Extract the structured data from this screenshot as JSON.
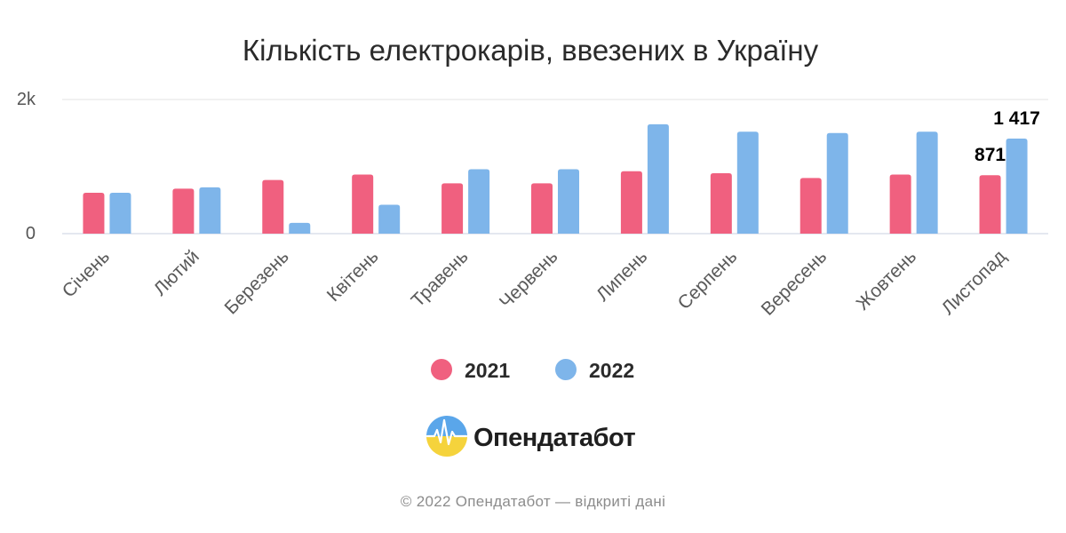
{
  "chart_data": {
    "type": "bar",
    "title": "Кількість електрокарів, ввезених в Україну",
    "categories": [
      "Січень",
      "Лютий",
      "Березень",
      "Квітень",
      "Травень",
      "Червень",
      "Липень",
      "Серпень",
      "Вересень",
      "Жовтень",
      "Листопад"
    ],
    "series": [
      {
        "name": "2021",
        "color": "#f0607f",
        "values": [
          610,
          670,
          800,
          880,
          750,
          750,
          930,
          900,
          830,
          880,
          871
        ]
      },
      {
        "name": "2022",
        "color": "#7eb5ea",
        "values": [
          610,
          690,
          160,
          430,
          960,
          960,
          1630,
          1520,
          1500,
          1520,
          1417
        ]
      }
    ],
    "data_labels": [
      {
        "series": "2021",
        "category": "Листопад",
        "text": "871"
      },
      {
        "series": "2022",
        "category": "Листопад",
        "text": "1 417"
      }
    ],
    "y_ticks": [
      {
        "value": 0,
        "label": "0"
      },
      {
        "value": 2000,
        "label": "2k"
      }
    ],
    "ylim": [
      0,
      2000
    ],
    "xlabel": "",
    "ylabel": "",
    "grid": true,
    "legend_position": "bottom-center"
  },
  "brand": {
    "name": "Опендатабот",
    "logo_icon": "opendatabot-logo-icon"
  },
  "footer": {
    "text": "© 2022 Опендатабот — відкриті дані"
  }
}
